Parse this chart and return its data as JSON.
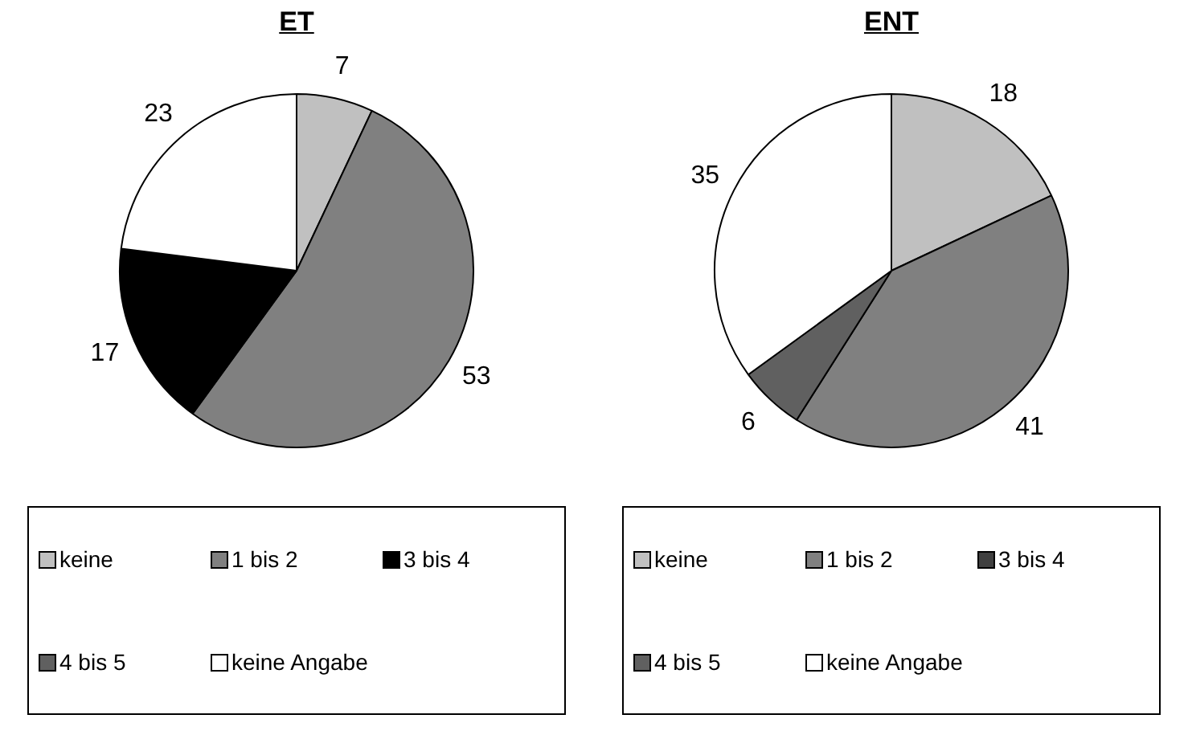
{
  "chart_data": [
    {
      "type": "pie",
      "title": "ET",
      "categories": [
        "keine",
        "1 bis 2",
        "3 bis 4",
        "4 bis 5",
        "keine Angabe"
      ],
      "values": [
        7,
        53,
        17,
        0,
        23
      ],
      "value_labels": [
        "7",
        "53",
        "17",
        null,
        "23"
      ],
      "colors": [
        "#c0c0c0",
        "#808080",
        "#000000",
        "#606060",
        "#ffffff"
      ],
      "legend": "bottom"
    },
    {
      "type": "pie",
      "title": "ENT",
      "categories": [
        "keine",
        "1 bis 2",
        "3 bis 4",
        "4 bis 5",
        "keine Angabe"
      ],
      "values": [
        18,
        41,
        0,
        6,
        35
      ],
      "value_labels": [
        "18",
        "41",
        null,
        "6",
        "35"
      ],
      "colors": [
        "#c0c0c0",
        "#808080",
        "#404040",
        "#606060",
        "#ffffff"
      ],
      "legend": "bottom"
    }
  ]
}
